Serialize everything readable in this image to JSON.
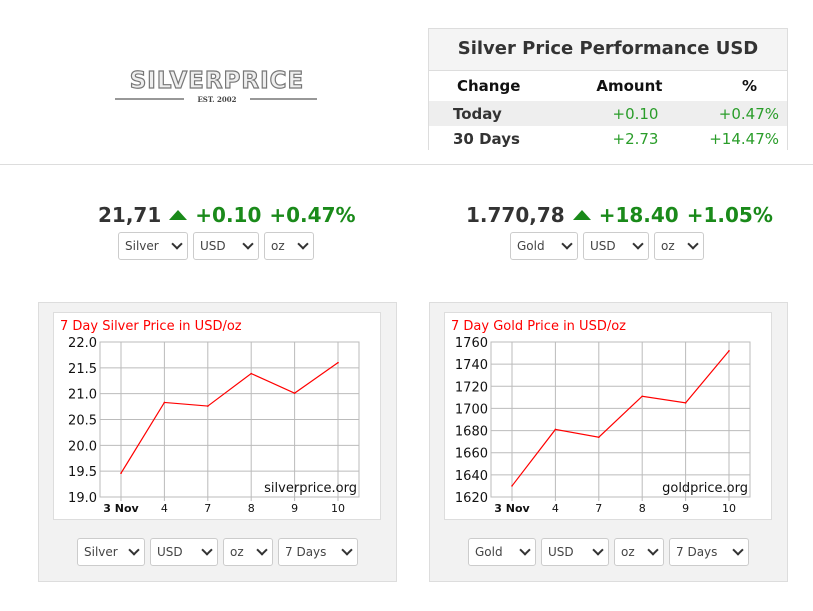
{
  "logo": {
    "text": "SILVERPRICE",
    "sub": "EST. 2002"
  },
  "performance": {
    "title": "Silver Price Performance USD",
    "headers": [
      "Change",
      "Amount",
      "%"
    ],
    "rows": [
      {
        "label": "Today",
        "amount": "+0.10",
        "pct": "+0.47%"
      },
      {
        "label": "30 Days",
        "amount": "+2.73",
        "pct": "+14.47%"
      }
    ]
  },
  "silver_quote": {
    "price": "21,71",
    "change": "+0.10",
    "pct": "+0.47%",
    "metal": "Silver",
    "currency": "USD",
    "unit": "oz"
  },
  "gold_quote": {
    "price": "1.770,78",
    "change": "+18.40",
    "pct": "+1.05%",
    "metal": "Gold",
    "currency": "USD",
    "unit": "oz"
  },
  "silver_panel": {
    "metal": "Silver",
    "currency": "USD",
    "unit": "oz",
    "period": "7 Days"
  },
  "gold_panel": {
    "metal": "Gold",
    "currency": "USD",
    "unit": "oz",
    "period": "7 Days"
  },
  "colors": {
    "up": "#1a8a1a",
    "line": "#ff0000"
  },
  "chart_data": [
    {
      "type": "line",
      "title": "7 Day Silver Price in USD/oz",
      "watermark": "silverprice.org",
      "categories": [
        "3 Nov",
        "4",
        "7",
        "8",
        "9",
        "10"
      ],
      "values": [
        19.46,
        20.83,
        20.76,
        21.39,
        21.01,
        21.6
      ],
      "ylim": [
        19.0,
        22.0
      ],
      "yticks": [
        "19.0",
        "19.5",
        "20.0",
        "20.5",
        "21.0",
        "21.5",
        "22.0"
      ],
      "grid": true
    },
    {
      "type": "line",
      "title": "7 Day Gold Price in USD/oz",
      "watermark": "goldprice.org",
      "categories": [
        "3 Nov",
        "4",
        "7",
        "8",
        "9",
        "10"
      ],
      "values": [
        1630,
        1681,
        1674,
        1711,
        1705,
        1752
      ],
      "ylim": [
        1620,
        1760
      ],
      "yticks": [
        "1620",
        "1640",
        "1660",
        "1680",
        "1700",
        "1720",
        "1740",
        "1760"
      ],
      "grid": true
    }
  ]
}
